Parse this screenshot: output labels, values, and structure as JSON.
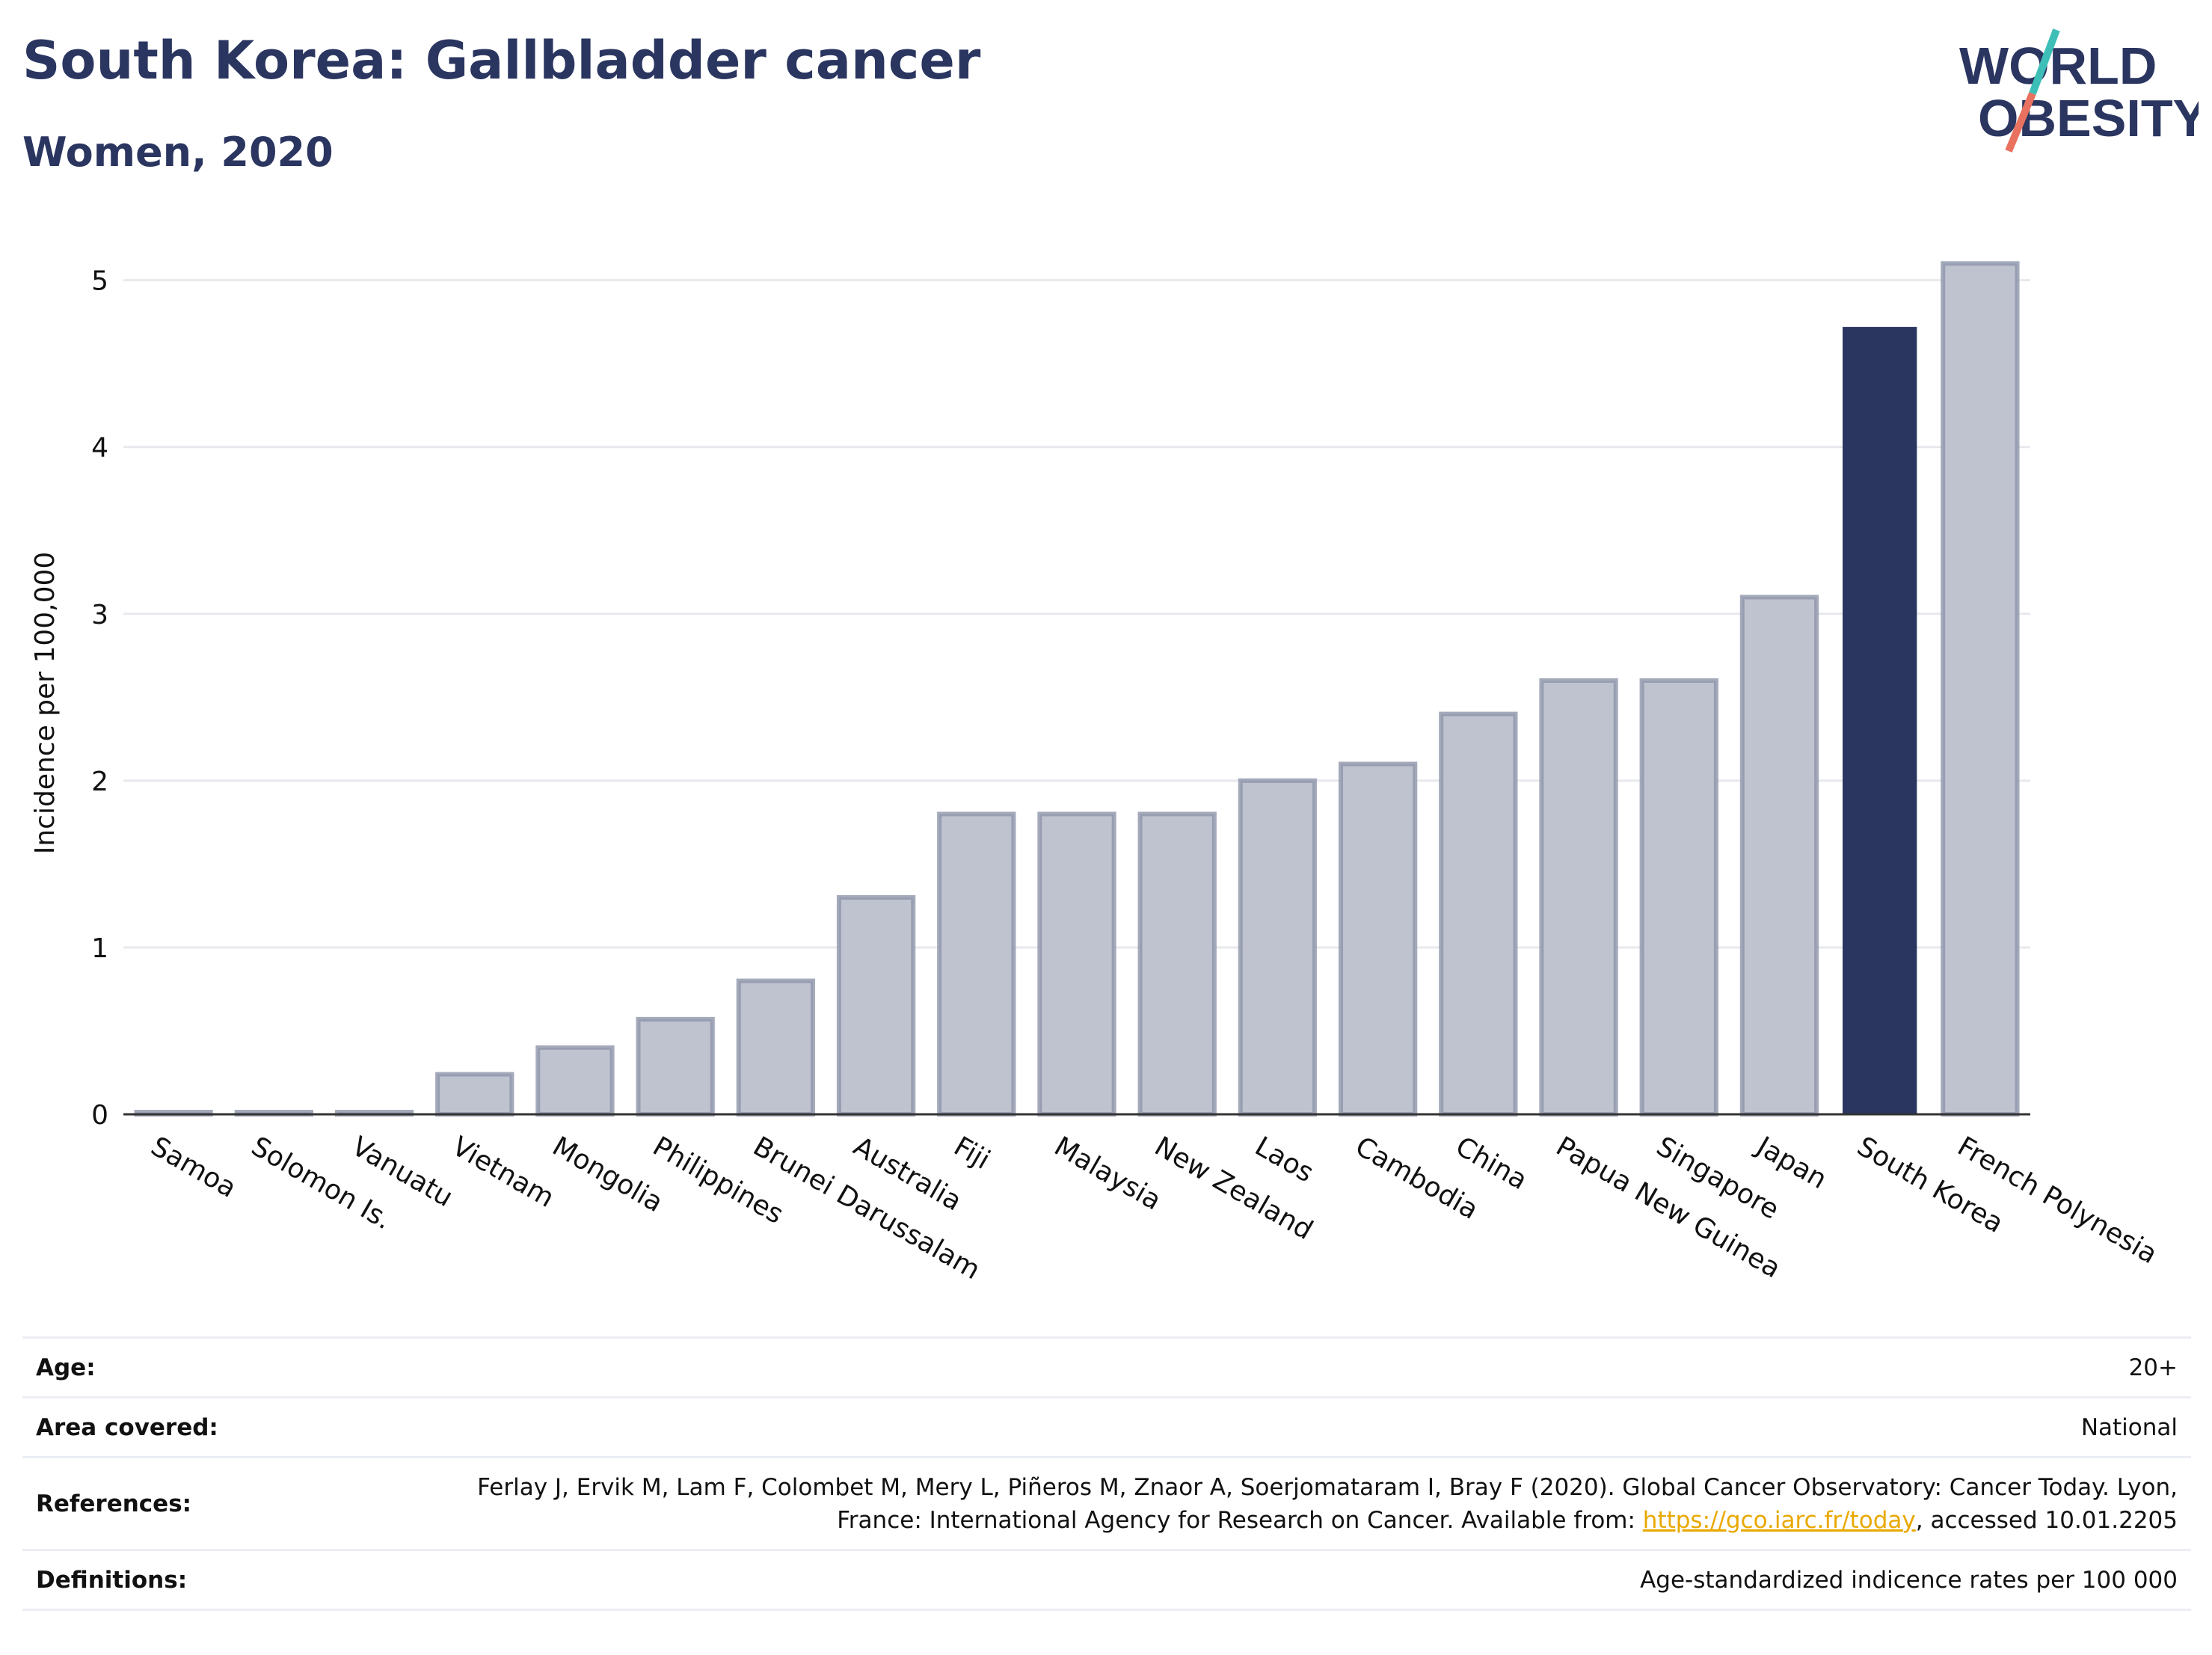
{
  "header": {
    "title": "South Korea: Gallbladder cancer",
    "subtitle": "Women, 2020"
  },
  "logo": {
    "line1": "WORLD",
    "line2": "OBESITY",
    "brand_color": "#2a3560",
    "accent_teal": "#3dbfb8",
    "accent_coral": "#e8715f"
  },
  "colors": {
    "highlight_bar": "#2a3560",
    "other_bar_fill": "#bfc3cf",
    "other_bar_stroke": "#8e95aa",
    "gridline": "#e8e9ee",
    "axis": "#333333"
  },
  "chart_data": {
    "type": "bar",
    "ylabel": "Incidence per 100,000",
    "ylim": [
      0,
      5.2
    ],
    "yticks": [
      0,
      1,
      2,
      3,
      4,
      5
    ],
    "grid": true,
    "highlight": "South Korea",
    "categories": [
      "Samoa",
      "Solomon Is.",
      "Vanuatu",
      "Vietnam",
      "Mongolia",
      "Philippines",
      "Brunei Darussalam",
      "Australia",
      "Fiji",
      "Malaysia",
      "New Zealand",
      "Laos",
      "Cambodia",
      "China",
      "Papua New Guinea",
      "Singapore",
      "Japan",
      "South Korea",
      "French Polynesia"
    ],
    "values": [
      0.0,
      0.0,
      0.0,
      0.24,
      0.4,
      0.57,
      0.8,
      1.3,
      1.8,
      1.8,
      1.8,
      2.0,
      2.1,
      2.4,
      2.6,
      2.6,
      3.1,
      4.72,
      5.1
    ]
  },
  "info": {
    "age_label": "Age:",
    "age_value": "20+",
    "area_label": "Area covered:",
    "area_value": "National",
    "refs_label": "References:",
    "refs_text_1": "Ferlay J, Ervik M, Lam F, Colombet M, Mery L, Piñeros M, Znaor A, Soerjomataram I, Bray F (2020). Global Cancer Observatory: Cancer Today. Lyon, France: International Agency for Research on Cancer. Available from: ",
    "refs_link": "https://gco.iarc.fr/today",
    "refs_text_2": ", accessed 10.01.2205",
    "defs_label": "Definitions:",
    "defs_value": "Age-standardized indicence rates per 100 000"
  }
}
